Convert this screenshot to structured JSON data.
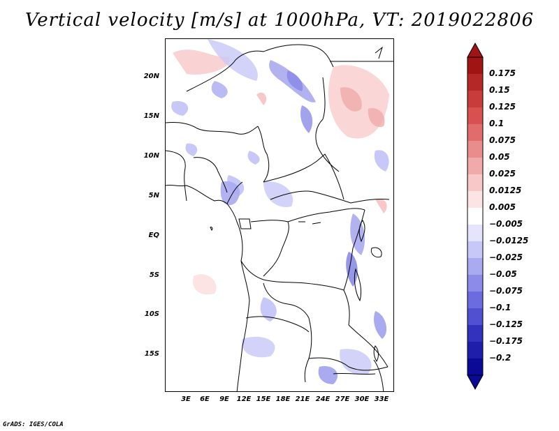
{
  "title": "Vertical velocity [m/s] at 1000hPa, VT: 2019022806",
  "credit": "GrADS: IGES/COLA",
  "map": {
    "lon_range": [
      0,
      35
    ],
    "lat_range": [
      -20,
      25
    ],
    "x_ticks": [
      "3E",
      "6E",
      "9E",
      "12E",
      "15E",
      "18E",
      "21E",
      "24E",
      "27E",
      "30E",
      "33E"
    ],
    "y_ticks": [
      "20N",
      "15N",
      "10N",
      "5N",
      "EQ",
      "5S",
      "10S",
      "15S"
    ]
  },
  "colorbar": {
    "labels": [
      "0.175",
      "0.15",
      "0.125",
      "0.1",
      "0.075",
      "0.05",
      "0.025",
      "0.0125",
      "0.005",
      "−0.005",
      "−0.0125",
      "−0.025",
      "−0.05",
      "−0.075",
      "−0.1",
      "−0.125",
      "−0.175",
      "−0.2"
    ],
    "colors": [
      "#a01414",
      "#b42828",
      "#c83c3c",
      "#d85050",
      "#e06c6c",
      "#e88c8c",
      "#f0aaaa",
      "#f8c8c8",
      "#fce4e4",
      "#ffffff",
      "#e4e4fc",
      "#c8c8f8",
      "#aaaaf0",
      "#8c8ce8",
      "#6c6ce0",
      "#5050d0",
      "#3232be",
      "#1e1eaa",
      "#0a0a96"
    ]
  }
}
